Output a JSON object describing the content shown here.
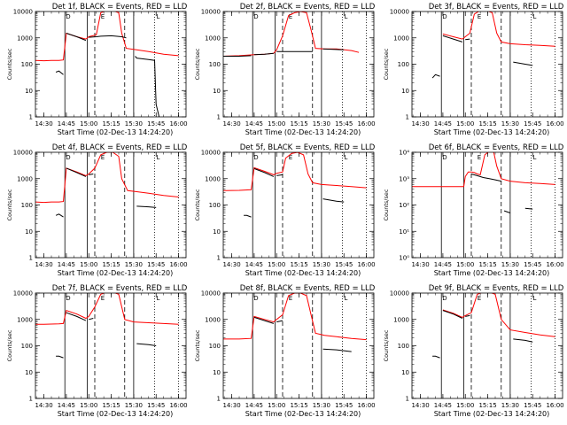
{
  "chart_data": {
    "type": "line",
    "layout": "3x3 grid",
    "xlabel": "Start Time (02-Dec-13 14:24:20)",
    "ylabel": "Counts/sec",
    "x_tick_labels": [
      "14:30",
      "14:45",
      "15:00",
      "15:15",
      "15:30",
      "15:45",
      "16:00"
    ],
    "xlim": [
      "14:24:20",
      "16:05"
    ],
    "y_scale": "log",
    "ylim": [
      1,
      10000
    ],
    "y_tick_labels_decimal": [
      "1",
      "10",
      "100",
      "1000",
      "10000"
    ],
    "y_tick_labels_power": [
      "10⁰",
      "10¹",
      "10²",
      "10³",
      "10⁴"
    ],
    "series_colors": {
      "events": "#000000",
      "lld": "#ff0000"
    },
    "markers": {
      "solid_lines": [
        "14:44",
        "14:59",
        "15:30"
      ],
      "dashed_lines": [
        "15:04",
        "15:24"
      ],
      "dotted_lines": [
        "15:44",
        "16:00"
      ]
    },
    "corner_labels": [
      "D",
      "E",
      "L"
    ],
    "panels": [
      {
        "title": "Det 1f, BLACK = Events, RED = LLD",
        "tick_format": "decimal",
        "events": {
          "x": [
            "14:38",
            "14:40",
            "14:43",
            "14:44",
            "14:45",
            "14:52",
            "14:58",
            "14:59",
            "15:00",
            "15:05",
            "15:08",
            "15:15",
            "15:22",
            "15:25",
            "15:30",
            "15:31",
            "15:32",
            "15:40",
            "15:44",
            "15:45",
            "15:47"
          ],
          "y": [
            50,
            55,
            40,
            null,
            1500,
            1100,
            800,
            null,
            1050,
            1100,
            1150,
            1200,
            1100,
            1000,
            null,
            200,
            170,
            150,
            140,
            3,
            1
          ]
        },
        "lld": {
          "x": [
            "14:24:20",
            "14:30",
            "14:35",
            "14:40",
            "14:43",
            "14:45",
            "14:52",
            "14:58",
            "15:00",
            "15:05",
            "15:08",
            "15:12",
            "15:16",
            "15:20",
            "15:22",
            "15:25",
            "15:32",
            "15:40",
            "15:50",
            "16:00"
          ],
          "y": [
            140,
            135,
            140,
            140,
            145,
            1500,
            1100,
            900,
            1100,
            1300,
            9000,
            11000,
            11000,
            9000,
            1500,
            400,
            350,
            300,
            240,
            210
          ]
        }
      },
      {
        "title": "Det 2f, BLACK = Events, RED = LLD",
        "tick_format": "decimal",
        "events": {
          "x": [
            "14:24:20",
            "14:35",
            "14:43",
            "14:44",
            "14:45",
            "14:52",
            "14:58",
            "14:59",
            "15:00",
            "15:24",
            "15:25",
            "15:30",
            "15:31",
            "15:45"
          ],
          "y": [
            200,
            200,
            210,
            null,
            230,
            240,
            260,
            null,
            300,
            300,
            null,
            null,
            380,
            350
          ]
        },
        "lld": {
          "x": [
            "14:24:20",
            "14:35",
            "14:45",
            "14:52",
            "14:58",
            "15:00",
            "15:04",
            "15:08",
            "15:12",
            "15:16",
            "15:20",
            "15:23",
            "15:26",
            "15:32",
            "15:40",
            "15:50",
            "15:55"
          ],
          "y": [
            200,
            210,
            230,
            240,
            260,
            350,
            1200,
            7000,
            9000,
            10000,
            9000,
            2000,
            400,
            380,
            380,
            330,
            280
          ]
        }
      },
      {
        "title": "Det 3f, BLACK = Events, RED = LLD",
        "tick_format": "decimal",
        "events": {
          "x": [
            "14:38",
            "14:40",
            "14:43",
            "14:44",
            "14:45",
            "14:52",
            "14:58",
            "14:59",
            "15:00",
            "15:03",
            "15:30",
            "15:31",
            "15:32",
            "15:40",
            "15:45"
          ],
          "y": [
            30,
            40,
            35,
            null,
            1200,
            900,
            700,
            null,
            850,
            900,
            null,
            null,
            120,
            100,
            90
          ]
        },
        "lld": {
          "x": [
            "14:45",
            "14:52",
            "14:58",
            "15:00",
            "15:03",
            "15:06",
            "15:10",
            "15:14",
            "15:18",
            "15:21",
            "15:24",
            "15:30",
            "15:40",
            "15:50",
            "16:00"
          ],
          "y": [
            1400,
            1100,
            900,
            1100,
            1500,
            8000,
            11000,
            11000,
            9000,
            1500,
            700,
            600,
            550,
            520,
            480
          ]
        }
      },
      {
        "title": "Det 4f, BLACK = Events, RED = LLD",
        "tick_format": "decimal",
        "events": {
          "x": [
            "14:38",
            "14:40",
            "14:43",
            "14:44",
            "14:45",
            "14:52",
            "14:58",
            "14:59",
            "15:00",
            "15:03",
            "15:30",
            "15:31",
            "15:32",
            "15:40",
            "15:45"
          ],
          "y": [
            40,
            45,
            35,
            null,
            2500,
            1700,
            1200,
            null,
            1400,
            1500,
            null,
            null,
            90,
            85,
            80
          ]
        },
        "lld": {
          "x": [
            "14:24:20",
            "14:30",
            "14:35",
            "14:40",
            "14:43",
            "14:45",
            "14:52",
            "14:58",
            "15:00",
            "15:04",
            "15:08",
            "15:12",
            "15:16",
            "15:20",
            "15:22",
            "15:26",
            "15:32",
            "15:40",
            "15:50",
            "16:00"
          ],
          "y": [
            130,
            125,
            130,
            130,
            135,
            2500,
            1800,
            1300,
            1500,
            2500,
            8000,
            10000,
            10000,
            7000,
            1000,
            350,
            320,
            280,
            230,
            200
          ]
        }
      },
      {
        "title": "Det 5f, BLACK = Events, RED = LLD",
        "tick_format": "decimal",
        "events": {
          "x": [
            "14:38",
            "14:40",
            "14:43",
            "14:44",
            "14:45",
            "14:52",
            "14:58",
            "14:59",
            "15:00",
            "15:04",
            "15:24",
            "15:25",
            "15:26",
            "15:30",
            "15:31",
            "15:40",
            "15:45"
          ],
          "y": [
            40,
            40,
            35,
            null,
            2400,
            1700,
            1200,
            null,
            1300,
            1400,
            null,
            null,
            200,
            null,
            170,
            140,
            130
          ]
        },
        "lld": {
          "x": [
            "14:24:20",
            "14:35",
            "14:43",
            "14:45",
            "14:52",
            "14:58",
            "15:00",
            "15:04",
            "15:06",
            "15:10",
            "15:14",
            "15:18",
            "15:21",
            "15:24",
            "15:30",
            "15:40",
            "15:50",
            "16:00"
          ],
          "y": [
            350,
            360,
            380,
            2600,
            1900,
            1400,
            1600,
            1800,
            6000,
            9000,
            10000,
            8000,
            1500,
            700,
            600,
            550,
            500,
            450
          ]
        }
      },
      {
        "title": "Det 6f, BLACK = Events, RED = LLD",
        "tick_format": "power",
        "events": {
          "x": [
            "15:04",
            "15:08",
            "15:12",
            "15:16",
            "15:20",
            "15:24",
            "15:25",
            "15:26",
            "15:30",
            "15:31",
            "15:40",
            "15:45"
          ],
          "y": [
            1500,
            1300,
            1100,
            1000,
            900,
            800,
            null,
            60,
            50,
            null,
            75,
            70
          ]
        },
        "lld": {
          "x": [
            "14:24:20",
            "14:45",
            "14:59",
            "15:00",
            "15:02",
            "15:04",
            "15:06",
            "15:08",
            "15:10",
            "15:13",
            "15:16",
            "15:19",
            "15:21",
            "15:24",
            "15:30",
            "15:40",
            "15:50",
            "16:00"
          ],
          "y": [
            500,
            500,
            500,
            1200,
            1800,
            1800,
            1700,
            1500,
            1400,
            8000,
            11000,
            10000,
            3000,
            1000,
            800,
            700,
            650,
            600
          ]
        }
      },
      {
        "title": "Det 7f, BLACK = Events, RED = LLD",
        "tick_format": "decimal",
        "events": {
          "x": [
            "14:38",
            "14:40",
            "14:43",
            "14:44",
            "14:45",
            "14:52",
            "14:58",
            "14:59",
            "15:00",
            "15:03",
            "15:30",
            "15:31",
            "15:32",
            "15:40",
            "15:45"
          ],
          "y": [
            40,
            40,
            35,
            null,
            1800,
            1300,
            900,
            null,
            1000,
            1100,
            null,
            null,
            120,
            110,
            100
          ]
        },
        "lld": {
          "x": [
            "14:24:20",
            "14:30",
            "14:40",
            "14:43",
            "14:45",
            "14:52",
            "14:58",
            "15:00",
            "15:04",
            "15:08",
            "15:12",
            "15:16",
            "15:20",
            "15:24",
            "15:30",
            "15:40",
            "15:50",
            "16:00"
          ],
          "y": [
            650,
            650,
            680,
            700,
            2200,
            1600,
            1100,
            1300,
            3000,
            9000,
            11000,
            11000,
            9000,
            1000,
            800,
            750,
            700,
            650
          ]
        }
      },
      {
        "title": "Det 8f, BLACK = Events, RED = LLD",
        "tick_format": "decimal",
        "events": {
          "x": [
            "14:45",
            "14:52",
            "14:58",
            "14:59",
            "15:00",
            "15:04",
            "15:24",
            "15:25",
            "15:26",
            "15:30",
            "15:31",
            "15:40",
            "15:45",
            "15:50"
          ],
          "y": [
            1200,
            900,
            700,
            null,
            800,
            900,
            null,
            null,
            100,
            null,
            75,
            70,
            65,
            60
          ]
        },
        "lld": {
          "x": [
            "14:24:20",
            "14:35",
            "14:43",
            "14:45",
            "14:52",
            "14:58",
            "15:00",
            "15:04",
            "15:08",
            "15:12",
            "15:16",
            "15:20",
            "15:23",
            "15:26",
            "15:32",
            "15:40",
            "15:50",
            "16:00"
          ],
          "y": [
            180,
            180,
            190,
            1300,
            1000,
            800,
            1000,
            1500,
            8000,
            10000,
            10000,
            8000,
            1500,
            300,
            250,
            220,
            190,
            170
          ]
        }
      },
      {
        "title": "Det 9f, BLACK = Events, RED = LLD",
        "tick_format": "decimal",
        "events": {
          "x": [
            "14:38",
            "14:40",
            "14:43",
            "14:44",
            "14:45",
            "14:52",
            "14:58",
            "14:59",
            "15:00",
            "15:03",
            "15:30",
            "15:31",
            "15:32",
            "15:40",
            "15:45"
          ],
          "y": [
            40,
            40,
            35,
            null,
            2200,
            1600,
            1100,
            null,
            1300,
            1400,
            null,
            null,
            180,
            160,
            140
          ]
        },
        "lld": {
          "x": [
            "14:45",
            "14:52",
            "14:58",
            "15:00",
            "15:04",
            "15:08",
            "15:12",
            "15:16",
            "15:20",
            "15:24",
            "15:30",
            "15:40",
            "15:50",
            "16:00"
          ],
          "y": [
            2300,
            1700,
            1200,
            1400,
            1800,
            9000,
            11000,
            11000,
            9000,
            1000,
            400,
            320,
            260,
            220
          ]
        }
      }
    ]
  }
}
